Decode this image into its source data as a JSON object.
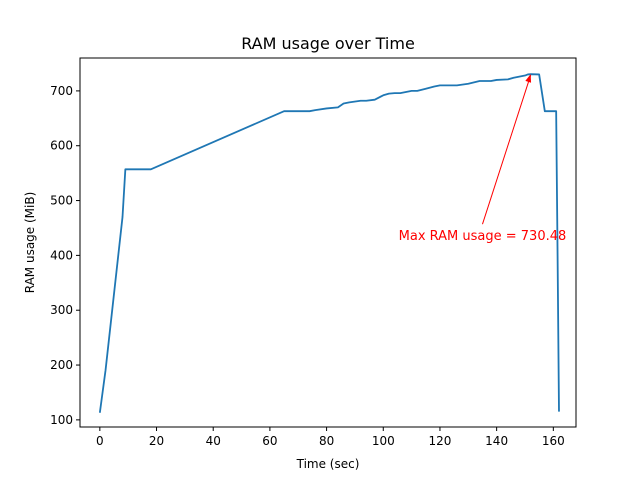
{
  "chart_data": {
    "type": "line",
    "title": "RAM usage over Time",
    "xlabel": "Time (sec)",
    "ylabel": "RAM usage (MiB)",
    "xlim": [
      -7,
      168
    ],
    "ylim": [
      87,
      760
    ],
    "xticks": [
      0,
      20,
      40,
      60,
      80,
      100,
      120,
      140,
      160
    ],
    "yticks": [
      100,
      200,
      300,
      400,
      500,
      600,
      700
    ],
    "grid": false,
    "series": [
      {
        "color": "#1f77b4",
        "x": [
          0,
          2,
          8,
          9,
          12,
          18,
          65,
          70,
          74,
          76,
          80,
          84,
          86,
          88,
          92,
          94,
          97,
          100,
          102,
          104,
          106,
          110,
          112,
          115,
          118,
          120,
          122,
          124,
          126,
          130,
          134,
          136,
          138,
          140,
          144,
          146,
          148,
          150,
          151,
          152,
          155,
          157,
          159,
          161,
          161.5,
          162
        ],
        "y": [
          113,
          190,
          470,
          557,
          557,
          557,
          663,
          663,
          663,
          665,
          668,
          670,
          677,
          679,
          682,
          682,
          684,
          692,
          695,
          696,
          696,
          700,
          700,
          704,
          708,
          710,
          710,
          710,
          710,
          713,
          718,
          718,
          718,
          720,
          721,
          724,
          726,
          728,
          730,
          730.48,
          730,
          663,
          663,
          663,
          400,
          115
        ]
      }
    ],
    "annotation": {
      "text": "Max RAM usage = 730.48",
      "xy": [
        152,
        730.48
      ],
      "xytext": [
        135,
        435
      ],
      "color": "#ff0000"
    }
  }
}
